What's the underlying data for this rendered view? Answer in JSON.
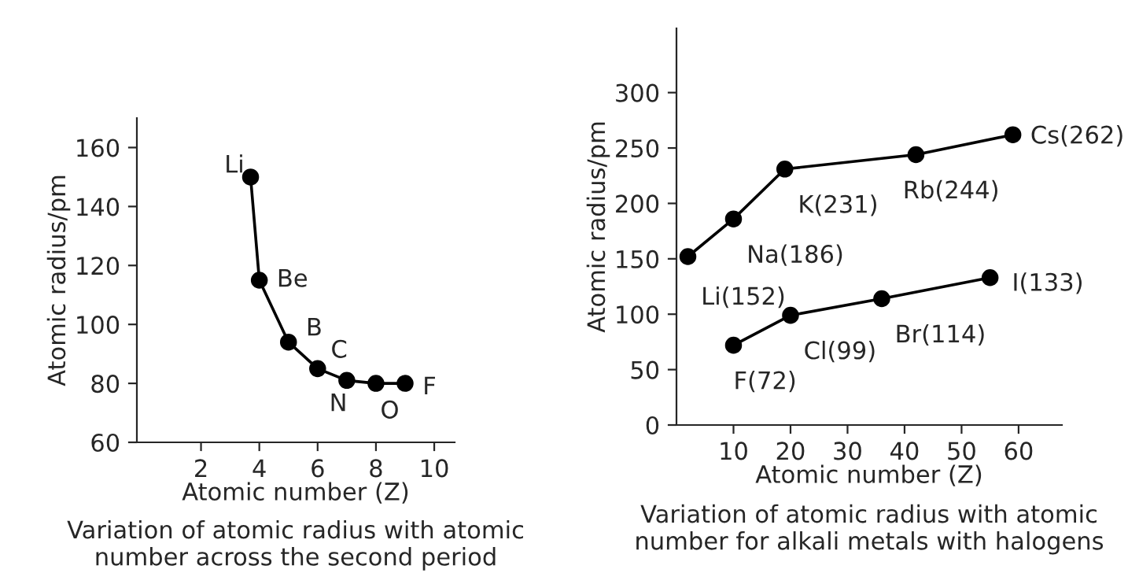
{
  "chart_data": [
    {
      "type": "line",
      "xlabel": "Atomic number (Z)",
      "ylabel": "Atomic radius/pm",
      "xlim": [
        -0.2,
        10.7
      ],
      "ylim": [
        60,
        170
      ],
      "xticks": [
        2,
        4,
        6,
        8,
        10
      ],
      "yticks": [
        60,
        80,
        100,
        120,
        140,
        160
      ],
      "grid": false,
      "marker": "circle",
      "line_style": "solid",
      "series": [
        {
          "color": "#000000",
          "x": [
            3.7,
            4,
            5,
            6,
            7,
            8,
            9
          ],
          "values": [
            150,
            115,
            94,
            85,
            81,
            80,
            80
          ]
        }
      ],
      "annotations": [
        {
          "text": "Li",
          "x": 3.7,
          "y": 150
        },
        {
          "text": "Be",
          "x": 4,
          "y": 115
        },
        {
          "text": "B",
          "x": 5,
          "y": 94
        },
        {
          "text": "C",
          "x": 6,
          "y": 85
        },
        {
          "text": "N",
          "x": 7,
          "y": 81
        },
        {
          "text": "O",
          "x": 8,
          "y": 80
        },
        {
          "text": "F",
          "x": 9,
          "y": 80
        },
        "Variation of atomic radius with atomic\nnumber across the second period"
      ]
    },
    {
      "type": "line",
      "xlabel": "Atomic number (Z)",
      "ylabel": "Atomic radius/pm",
      "xlim": [
        0,
        67.6
      ],
      "ylim": [
        0,
        358
      ],
      "xticks": [
        10,
        20,
        30,
        40,
        50,
        60
      ],
      "yticks": [
        0,
        50,
        100,
        150,
        200,
        250,
        300
      ],
      "grid": false,
      "marker": "circle",
      "line_style": "solid",
      "series": [
        {
          "color": "#000000",
          "x": [
            2,
            10,
            19,
            42,
            59
          ],
          "values": [
            152,
            186,
            231,
            244,
            262
          ]
        },
        {
          "color": "#000000",
          "x": [
            10,
            20,
            36,
            55
          ],
          "values": [
            72,
            99,
            114,
            133
          ]
        }
      ],
      "annotations": [
        {
          "text": "Li(152)",
          "x": 2,
          "y": 152
        },
        {
          "text": "Na(186)",
          "x": 10,
          "y": 186
        },
        {
          "text": "K(231)",
          "x": 19,
          "y": 231
        },
        {
          "text": "Rb(244)",
          "x": 42,
          "y": 244
        },
        {
          "text": "Cs(262)",
          "x": 59,
          "y": 262
        },
        {
          "text": "F(72)",
          "x": 10,
          "y": 72
        },
        {
          "text": "Cl(99)",
          "x": 20,
          "y": 99
        },
        {
          "text": "Br(114)",
          "x": 36,
          "y": 114
        },
        {
          "text": "I(133)",
          "x": 55,
          "y": 133
        },
        "Variation of atomic radius with atomic\nnumber for alkali metals with halogens"
      ]
    }
  ]
}
